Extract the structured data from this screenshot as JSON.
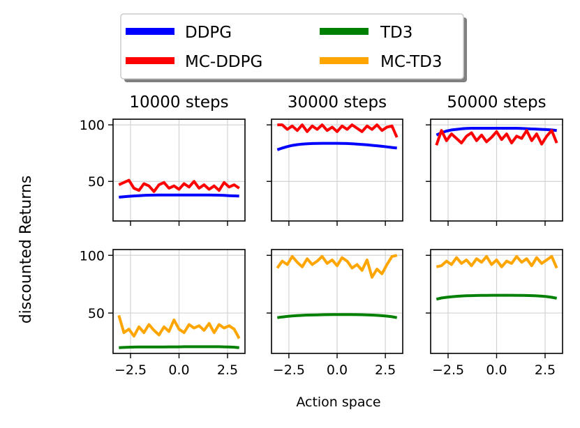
{
  "figure": {
    "ylabel": "discounted Returns",
    "xlabel": "Action space"
  },
  "legend": {
    "items": [
      {
        "label": "DDPG",
        "color": "#0000ff"
      },
      {
        "label": "TD3",
        "color": "#008000"
      },
      {
        "label": "MC-DDPG",
        "color": "#ff0000"
      },
      {
        "label": "MC-TD3",
        "color": "#ffa500"
      }
    ]
  },
  "chart_data": [
    {
      "type": "line",
      "title": "10000 steps",
      "xlim": [
        -3.4,
        3.4
      ],
      "ylim": [
        15,
        105
      ],
      "xticks": [
        -2.5,
        0.0,
        2.5
      ],
      "xtick_labels": [],
      "yticks": [
        50,
        100
      ],
      "ytick_labels": [
        "50",
        "100"
      ],
      "series": [
        {
          "name": "DDPG",
          "color": "#0000ff",
          "y": [
            36,
            36.4,
            36.8,
            37.1,
            37.4,
            37.6,
            37.8,
            37.9,
            38,
            38,
            38,
            38,
            38,
            38,
            38,
            38,
            38,
            38,
            38,
            37.9,
            37.8,
            37.6,
            37.4,
            37.2,
            37
          ]
        },
        {
          "name": "MC-DDPG",
          "color": "#ff0000",
          "y": [
            47,
            49,
            51,
            44,
            42,
            48,
            46,
            41,
            47,
            49,
            44,
            46,
            43,
            48,
            45,
            50,
            44,
            47,
            43,
            46,
            42,
            49,
            45,
            47,
            44
          ]
        }
      ]
    },
    {
      "type": "line",
      "title": "30000 steps",
      "xlim": [
        -3.4,
        3.4
      ],
      "ylim": [
        15,
        105
      ],
      "xticks": [
        -2.5,
        0.0,
        2.5
      ],
      "xtick_labels": [],
      "yticks": [
        50,
        100
      ],
      "ytick_labels": [],
      "series": [
        {
          "name": "DDPG",
          "color": "#0000ff",
          "y": [
            78,
            79.5,
            80.8,
            81.8,
            82.5,
            83,
            83.3,
            83.5,
            83.6,
            83.7,
            83.7,
            83.7,
            83.7,
            83.6,
            83.5,
            83.3,
            83,
            82.7,
            82.3,
            81.9,
            81.5,
            81,
            80.5,
            80,
            79.5
          ]
        },
        {
          "name": "MC-DDPG",
          "color": "#ff0000",
          "y": [
            100,
            100,
            96,
            99,
            95,
            100,
            94,
            99,
            96,
            100,
            95,
            98,
            94,
            99,
            96,
            100,
            97,
            94,
            99,
            96,
            100,
            95,
            98,
            99,
            89
          ]
        }
      ]
    },
    {
      "type": "line",
      "title": "50000 steps",
      "xlim": [
        -3.4,
        3.4
      ],
      "ylim": [
        15,
        105
      ],
      "xticks": [
        -2.5,
        0.0,
        2.5
      ],
      "xtick_labels": [],
      "yticks": [
        50,
        100
      ],
      "ytick_labels": [],
      "series": [
        {
          "name": "DDPG",
          "color": "#0000ff",
          "y": [
            91,
            93,
            94.5,
            95.5,
            96,
            96.5,
            96.8,
            97,
            97,
            97,
            97,
            97,
            97,
            97,
            97,
            97,
            97,
            96.8,
            96.6,
            96.4,
            96.2,
            96,
            95.8,
            95.5,
            95
          ]
        },
        {
          "name": "MC-DDPG",
          "color": "#ff0000",
          "y": [
            82,
            95,
            86,
            92,
            88,
            84,
            90,
            93,
            86,
            91,
            85,
            89,
            94,
            87,
            92,
            84,
            90,
            88,
            95,
            86,
            92,
            83,
            90,
            95,
            84
          ]
        }
      ]
    },
    {
      "type": "line",
      "xlim": [
        -3.4,
        3.4
      ],
      "ylim": [
        15,
        105
      ],
      "xticks": [
        -2.5,
        0.0,
        2.5
      ],
      "xtick_labels": [
        "−2.5",
        "0.0",
        "2.5"
      ],
      "yticks": [
        50,
        100
      ],
      "ytick_labels": [
        "50",
        "100"
      ],
      "series": [
        {
          "name": "TD3",
          "color": "#008000",
          "y": [
            20,
            20.2,
            20.4,
            20.5,
            20.6,
            20.6,
            20.6,
            20.6,
            20.6,
            20.6,
            20.7,
            20.7,
            20.7,
            20.8,
            20.8,
            20.8,
            20.8,
            20.8,
            20.8,
            20.8,
            20.8,
            20.7,
            20.6,
            20.4,
            20
          ]
        },
        {
          "name": "MC-TD3",
          "color": "#ffa500",
          "y": [
            48,
            33,
            36,
            30,
            38,
            33,
            40,
            35,
            31,
            38,
            34,
            44,
            36,
            33,
            40,
            37,
            39,
            35,
            41,
            33,
            40,
            37,
            39,
            36,
            28
          ]
        }
      ]
    },
    {
      "type": "line",
      "xlim": [
        -3.4,
        3.4
      ],
      "ylim": [
        15,
        105
      ],
      "xticks": [
        -2.5,
        0.0,
        2.5
      ],
      "xtick_labels": [
        "−2.5",
        "0.0",
        "2.5"
      ],
      "yticks": [
        50,
        100
      ],
      "ytick_labels": [],
      "series": [
        {
          "name": "TD3",
          "color": "#008000",
          "y": [
            46,
            46.6,
            47.1,
            47.5,
            47.8,
            48,
            48.2,
            48.3,
            48.4,
            48.5,
            48.6,
            48.7,
            48.7,
            48.7,
            48.7,
            48.7,
            48.6,
            48.5,
            48.4,
            48.2,
            48,
            47.7,
            47.3,
            46.8,
            46
          ]
        },
        {
          "name": "MC-TD3",
          "color": "#ffa500",
          "y": [
            89,
            95,
            92,
            99,
            94,
            90,
            97,
            92,
            95,
            99,
            93,
            96,
            91,
            98,
            95,
            89,
            92,
            87,
            96,
            81,
            88,
            84,
            92,
            99,
            100
          ]
        }
      ]
    },
    {
      "type": "line",
      "xlim": [
        -3.4,
        3.4
      ],
      "ylim": [
        15,
        105
      ],
      "xticks": [
        -2.5,
        0.0,
        2.5
      ],
      "xtick_labels": [
        "−2.5",
        "0.0",
        "2.5"
      ],
      "yticks": [
        50,
        100
      ],
      "ytick_labels": [],
      "series": [
        {
          "name": "TD3",
          "color": "#008000",
          "y": [
            62,
            63,
            63.6,
            64.1,
            64.5,
            64.8,
            65,
            65.1,
            65.2,
            65.3,
            65.3,
            65.4,
            65.4,
            65.4,
            65.4,
            65.4,
            65.3,
            65.3,
            65.2,
            65.1,
            64.9,
            64.6,
            64.2,
            63.6,
            62.8
          ]
        },
        {
          "name": "MC-TD3",
          "color": "#ffa500",
          "y": [
            90,
            91,
            95,
            92,
            98,
            93,
            96,
            91,
            97,
            94,
            99,
            92,
            96,
            90,
            95,
            93,
            99,
            94,
            97,
            91,
            98,
            93,
            96,
            99,
            89
          ]
        }
      ]
    }
  ]
}
